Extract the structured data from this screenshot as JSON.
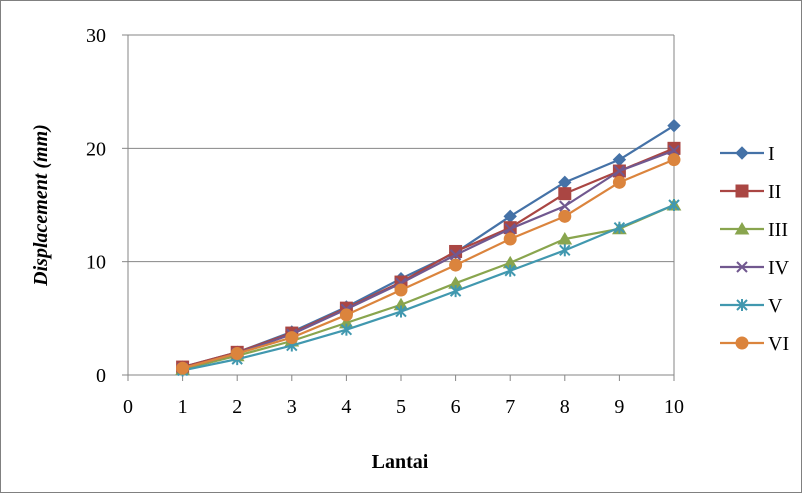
{
  "chart_data": {
    "type": "line",
    "xlabel": "Lantai",
    "ylabel": "Displacement (mm)",
    "x": [
      1,
      2,
      3,
      4,
      5,
      6,
      7,
      8,
      9,
      10
    ],
    "xlim": [
      0,
      10
    ],
    "ylim": [
      0,
      30
    ],
    "x_ticks": [
      "0",
      "1",
      "2",
      "3",
      "4",
      "5",
      "6",
      "7",
      "8",
      "9",
      "10"
    ],
    "y_ticks": [
      "0",
      "10",
      "20",
      "30"
    ],
    "grid": "horizontal",
    "legend_position": "right",
    "series": [
      {
        "name": "I",
        "color": "#4572A7",
        "marker": "diamond",
        "values": [
          0.7,
          2.0,
          3.8,
          6.0,
          8.5,
          10.8,
          14.0,
          17.0,
          19.0,
          22.0
        ]
      },
      {
        "name": "II",
        "color": "#AA4643",
        "marker": "square",
        "values": [
          0.7,
          2.0,
          3.7,
          5.9,
          8.2,
          10.9,
          13.0,
          16.0,
          18.0,
          20.0
        ]
      },
      {
        "name": "III",
        "color": "#89A54E",
        "marker": "triangle",
        "values": [
          0.5,
          1.7,
          3.0,
          4.6,
          6.2,
          8.1,
          9.9,
          12.0,
          12.9,
          15.0
        ]
      },
      {
        "name": "IV",
        "color": "#71588F",
        "marker": "x",
        "values": [
          0.6,
          1.9,
          3.6,
          5.8,
          8.1,
          10.6,
          12.9,
          14.9,
          18.0,
          19.8
        ]
      },
      {
        "name": "V",
        "color": "#4198AF",
        "marker": "star",
        "values": [
          0.4,
          1.4,
          2.6,
          4.0,
          5.6,
          7.4,
          9.2,
          11.0,
          13.0,
          15.0
        ]
      },
      {
        "name": "VI",
        "color": "#DB843D",
        "marker": "circle",
        "values": [
          0.6,
          1.9,
          3.3,
          5.3,
          7.5,
          9.7,
          12.0,
          14.0,
          17.0,
          19.0
        ]
      }
    ]
  }
}
